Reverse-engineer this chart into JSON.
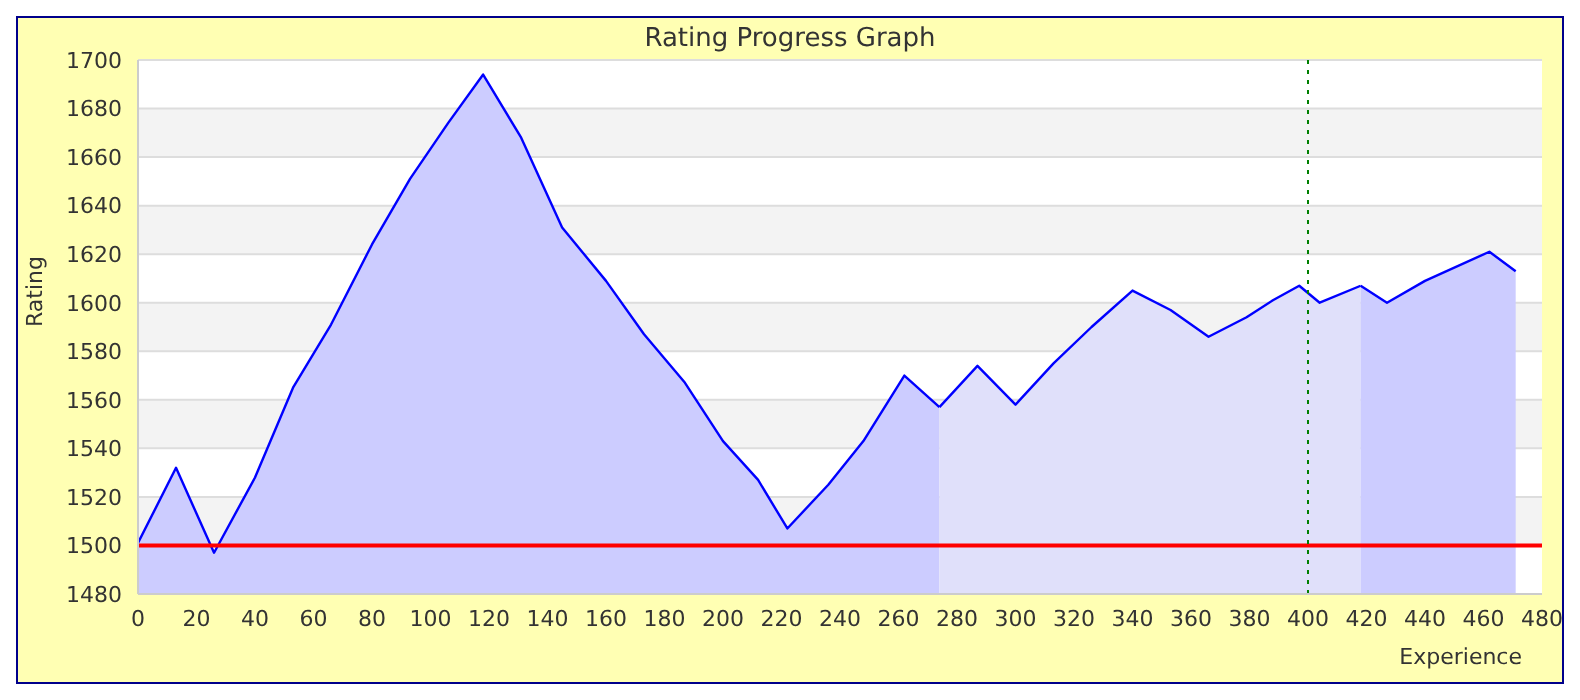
{
  "chart_data": {
    "type": "area",
    "title": "Rating Progress Graph",
    "xlabel": "Experience",
    "ylabel": "Rating",
    "series": [
      {
        "color": "#ccccff",
        "x": [
          0,
          13,
          26,
          40,
          53,
          66,
          80,
          93,
          106,
          118,
          131,
          145,
          160,
          173,
          187,
          200,
          212,
          222,
          236,
          248,
          262,
          274
        ],
        "values": [
          1501,
          1532,
          1497,
          1528,
          1565,
          1591,
          1624,
          1651,
          1674,
          1694,
          1668,
          1631,
          1609,
          1587,
          1567,
          1543,
          1527,
          1507,
          1525,
          1543,
          1570,
          1557
        ]
      },
      {
        "color": "#e0e0fa",
        "x": [
          274,
          287,
          300,
          313,
          326,
          340,
          353,
          366,
          379,
          388,
          397,
          404,
          418
        ],
        "values": [
          1557,
          1574,
          1558,
          1575,
          1590,
          1605,
          1597,
          1586,
          1594,
          1601,
          1607,
          1600,
          1607
        ]
      },
      {
        "color": "#ccccff",
        "x": [
          418,
          427,
          440,
          462,
          471
        ],
        "values": [
          1607,
          1600,
          1609,
          1621,
          1613
        ]
      }
    ],
    "xlim": [
      0,
      480
    ],
    "xticks": [
      0,
      20,
      40,
      60,
      80,
      100,
      120,
      140,
      160,
      180,
      200,
      220,
      240,
      260,
      280,
      300,
      320,
      340,
      360,
      380,
      400,
      420,
      440,
      460,
      480
    ],
    "ylim": [
      1480,
      1700
    ],
    "yticks": [
      1480,
      1500,
      1520,
      1540,
      1560,
      1580,
      1600,
      1620,
      1640,
      1660,
      1680,
      1700
    ],
    "grid": "y",
    "ref_lines": [
      {
        "axis": "y",
        "value": 1500,
        "color": "#ff0000",
        "line_style": "solid"
      },
      {
        "axis": "x",
        "value": 400,
        "color": "#008000",
        "line_style": "dotted"
      }
    ]
  }
}
